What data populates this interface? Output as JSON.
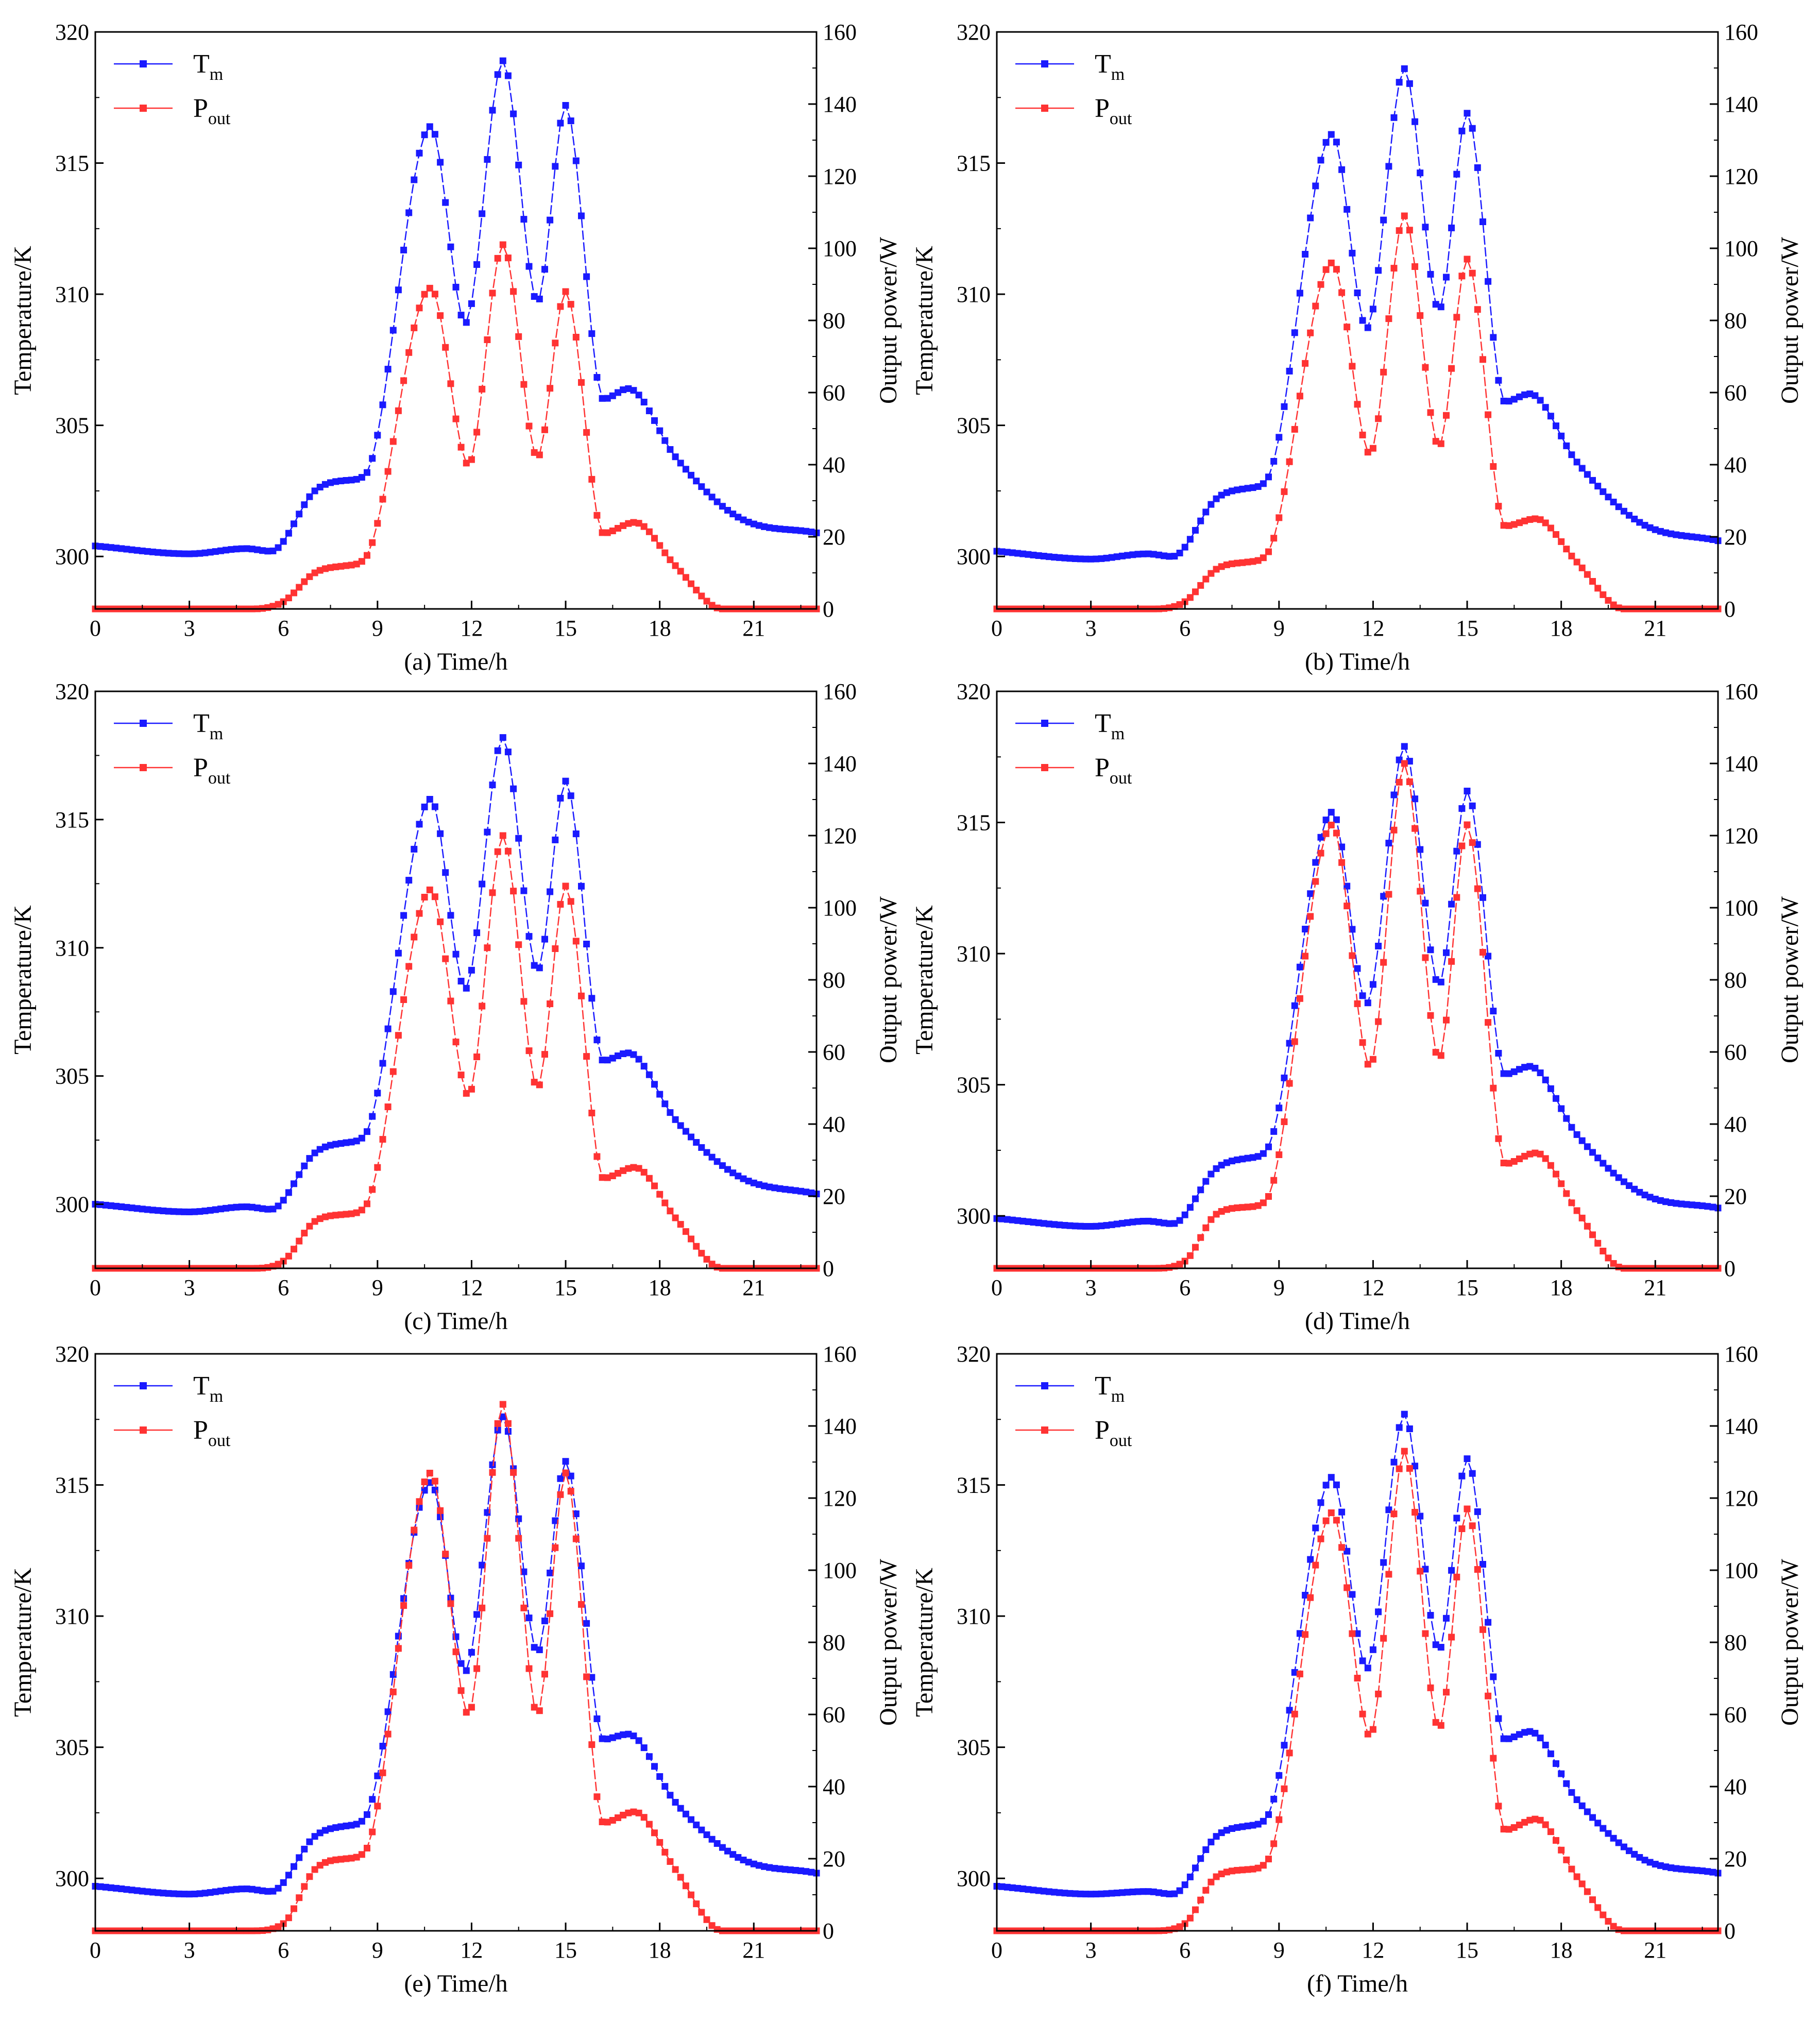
{
  "figure": {
    "colors": {
      "tm": "#1a1aff",
      "pout": "#ff3333",
      "axis": "#000000"
    },
    "series_names": {
      "tm": "T_m",
      "pout": "P_out"
    },
    "legend": {
      "tm_main": "T",
      "tm_sub": "m",
      "pout_main": "P",
      "pout_sub": "out"
    }
  },
  "chart_data": [
    {
      "type": "line",
      "panel": "a",
      "caption": "(a) Time/h",
      "xlabel": "Time/h",
      "ylabel_left": "Temperature/K",
      "ylabel_right": "Output power/W",
      "xlim": [
        0,
        23
      ],
      "xticks": [
        "0",
        "3",
        "6",
        "9",
        "12",
        "15",
        "18",
        "21"
      ],
      "ylim_left": [
        298,
        320
      ],
      "yticks_left": [
        "300",
        "305",
        "310",
        "315",
        "320"
      ],
      "ylim_right": [
        0,
        160
      ],
      "yticks_right": [
        "0",
        "20",
        "40",
        "60",
        "80",
        "100",
        "120",
        "140",
        "160"
      ],
      "legend_position": "top-left",
      "series": [
        {
          "name": "T_m",
          "axis": "left",
          "x": [
            0,
            3,
            4.8,
            5.6,
            7,
            8,
            8.6,
            10.7,
            11.8,
            13,
            14.1,
            15,
            16.2,
            17,
            18.5,
            20.5,
            23
          ],
          "y": [
            300.4,
            300.1,
            300.3,
            300.2,
            302.5,
            302.9,
            303.1,
            316.4,
            308.9,
            318.9,
            309.7,
            317.2,
            306.0,
            306.4,
            303.8,
            301.5,
            300.9
          ]
        },
        {
          "name": "P_out",
          "axis": "right",
          "x": [
            0,
            5,
            6,
            7,
            8,
            8.6,
            10.7,
            11.9,
            13,
            14.1,
            15,
            16.2,
            17.2,
            18.5,
            20,
            23
          ],
          "y": [
            0,
            0,
            2,
            10,
            12,
            14,
            89,
            40,
            101,
            42,
            88,
            21,
            24,
            12,
            0,
            0
          ]
        }
      ]
    },
    {
      "type": "line",
      "panel": "b",
      "caption": "(b) Time/h",
      "xlabel": "Time/h",
      "ylabel_left": "Temperature/K",
      "ylabel_right": "Output power/W",
      "xlim": [
        0,
        23
      ],
      "xticks": [
        "0",
        "3",
        "6",
        "9",
        "12",
        "15",
        "18",
        "21"
      ],
      "ylim_left": [
        298,
        320
      ],
      "yticks_left": [
        "300",
        "305",
        "310",
        "315",
        "320"
      ],
      "ylim_right": [
        0,
        160
      ],
      "yticks_right": [
        "0",
        "20",
        "40",
        "60",
        "80",
        "100",
        "120",
        "140",
        "160"
      ],
      "legend_position": "top-left",
      "series": [
        {
          "name": "T_m",
          "axis": "left",
          "x": [
            0,
            3,
            4.8,
            5.6,
            7,
            8,
            8.6,
            10.7,
            11.8,
            13,
            14.1,
            15,
            16.2,
            17,
            18.5,
            20.5,
            23
          ],
          "y": [
            300.2,
            299.9,
            300.1,
            300.0,
            302.2,
            302.6,
            302.9,
            316.1,
            308.7,
            318.6,
            309.4,
            316.9,
            305.9,
            306.2,
            303.6,
            301.3,
            300.6
          ]
        },
        {
          "name": "P_out",
          "axis": "right",
          "x": [
            0,
            5,
            6,
            7,
            8,
            8.6,
            10.7,
            11.9,
            13,
            14.1,
            15,
            16.2,
            17.2,
            18.5,
            20,
            23
          ],
          "y": [
            0,
            0,
            2,
            11,
            13,
            15,
            96,
            43,
            109,
            45,
            97,
            23,
            25,
            13,
            0,
            0
          ]
        }
      ]
    },
    {
      "type": "line",
      "panel": "c",
      "caption": "(c) Time/h",
      "xlabel": "Time/h",
      "ylabel_left": "Temperature/K",
      "ylabel_right": "Output power/W",
      "xlim": [
        0,
        23
      ],
      "xticks": [
        "0",
        "3",
        "6",
        "9",
        "12",
        "15",
        "18",
        "21"
      ],
      "ylim_left": [
        297.5,
        320
      ],
      "yticks_left": [
        "300",
        "305",
        "310",
        "315",
        "320"
      ],
      "ylim_right": [
        0,
        160
      ],
      "yticks_right": [
        "0",
        "20",
        "40",
        "60",
        "80",
        "100",
        "120",
        "140",
        "160"
      ],
      "legend_position": "top-left",
      "series": [
        {
          "name": "T_m",
          "axis": "left",
          "x": [
            0,
            3,
            4.8,
            5.6,
            7,
            8,
            8.6,
            10.7,
            11.8,
            13,
            14.1,
            15,
            16.2,
            17,
            18.5,
            20.5,
            23
          ],
          "y": [
            300.0,
            299.7,
            299.9,
            299.8,
            302.0,
            302.4,
            302.7,
            315.8,
            308.4,
            318.2,
            309.1,
            316.5,
            305.6,
            305.9,
            303.3,
            301.1,
            300.4
          ]
        },
        {
          "name": "P_out",
          "axis": "right",
          "x": [
            0,
            5,
            6,
            7,
            8,
            8.6,
            10.7,
            11.9,
            13,
            14.1,
            15,
            16.2,
            17.2,
            18.5,
            20,
            23
          ],
          "y": [
            0,
            0,
            2,
            13,
            15,
            17,
            105,
            48,
            120,
            50,
            106,
            25,
            28,
            14,
            0,
            0
          ]
        }
      ]
    },
    {
      "type": "line",
      "panel": "d",
      "caption": "(d) Time/h",
      "xlabel": "Time/h",
      "ylabel_left": "Temperature/K",
      "ylabel_right": "Output power/W",
      "xlim": [
        0,
        23
      ],
      "xticks": [
        "0",
        "3",
        "6",
        "9",
        "12",
        "15",
        "18",
        "21"
      ],
      "ylim_left": [
        298,
        320
      ],
      "yticks_left": [
        "300",
        "305",
        "310",
        "315",
        "320"
      ],
      "ylim_right": [
        0,
        160
      ],
      "yticks_right": [
        "0",
        "20",
        "40",
        "60",
        "80",
        "100",
        "120",
        "140",
        "160"
      ],
      "legend_position": "top-left",
      "series": [
        {
          "name": "T_m",
          "axis": "left",
          "x": [
            0,
            3,
            4.8,
            5.6,
            7,
            8,
            8.6,
            10.7,
            11.8,
            13,
            14.1,
            15,
            16.2,
            17,
            18.5,
            20.5,
            23
          ],
          "y": [
            299.9,
            299.6,
            299.8,
            299.7,
            301.8,
            302.2,
            302.5,
            315.4,
            308.1,
            317.9,
            308.8,
            316.2,
            305.4,
            305.7,
            303.1,
            300.9,
            300.3
          ]
        },
        {
          "name": "P_out",
          "axis": "right",
          "x": [
            0,
            5,
            6,
            7,
            8,
            8.6,
            10.7,
            11.9,
            13,
            14.1,
            15,
            16.2,
            17.2,
            18.5,
            20,
            23
          ],
          "y": [
            0,
            0,
            2,
            15,
            17,
            19,
            123,
            56,
            140,
            58,
            123,
            29,
            32,
            16,
            0,
            0
          ]
        }
      ]
    },
    {
      "type": "line",
      "panel": "e",
      "caption": "(e) Time/h",
      "xlabel": "Time/h",
      "ylabel_left": "Temperature/K",
      "ylabel_right": "Output power/W",
      "xlim": [
        0,
        23
      ],
      "xticks": [
        "0",
        "3",
        "6",
        "9",
        "12",
        "15",
        "18",
        "21"
      ],
      "ylim_left": [
        298,
        320
      ],
      "yticks_left": [
        "300",
        "305",
        "310",
        "315",
        "320"
      ],
      "ylim_right": [
        0,
        160
      ],
      "yticks_right": [
        "0",
        "20",
        "40",
        "60",
        "80",
        "100",
        "120",
        "140",
        "160"
      ],
      "legend_position": "top-left",
      "series": [
        {
          "name": "T_m",
          "axis": "left",
          "x": [
            0,
            3,
            4.8,
            5.6,
            7,
            8,
            8.6,
            10.7,
            11.8,
            13,
            14.1,
            15,
            16.2,
            17,
            18.5,
            20.5,
            23
          ],
          "y": [
            299.7,
            299.4,
            299.6,
            299.5,
            301.6,
            302.0,
            302.3,
            315.1,
            307.9,
            317.6,
            308.6,
            315.9,
            305.3,
            305.5,
            302.9,
            300.8,
            300.2
          ]
        },
        {
          "name": "P_out",
          "axis": "right",
          "x": [
            0,
            5,
            6,
            7,
            8,
            8.6,
            10.7,
            11.9,
            13,
            14.1,
            15,
            16.2,
            17.2,
            18.5,
            20,
            23
          ],
          "y": [
            0,
            0,
            2,
            17,
            20,
            22,
            127,
            60,
            146,
            60,
            127,
            30,
            33,
            17,
            0,
            0
          ]
        }
      ]
    },
    {
      "type": "line",
      "panel": "f",
      "caption": "(f) Time/h",
      "xlabel": "Time/h",
      "ylabel_left": "Temperature/K",
      "ylabel_right": "Output power/W",
      "xlim": [
        0,
        23
      ],
      "xticks": [
        "0",
        "3",
        "6",
        "9",
        "12",
        "15",
        "18",
        "21"
      ],
      "ylim_left": [
        298,
        320
      ],
      "yticks_left": [
        "300",
        "305",
        "310",
        "315",
        "320"
      ],
      "ylim_right": [
        0,
        160
      ],
      "yticks_right": [
        "0",
        "20",
        "40",
        "60",
        "80",
        "100",
        "120",
        "140",
        "160"
      ],
      "legend_position": "top-left",
      "series": [
        {
          "name": "T_m",
          "axis": "left",
          "x": [
            0,
            3,
            4.8,
            5.6,
            7,
            8,
            8.6,
            10.7,
            11.8,
            13,
            14.1,
            15,
            16.2,
            17,
            18.5,
            20.5,
            23
          ],
          "y": [
            299.7,
            299.4,
            299.5,
            299.4,
            301.6,
            302.0,
            302.3,
            315.3,
            308.0,
            317.7,
            308.7,
            316.0,
            305.3,
            305.6,
            303.0,
            300.8,
            300.2
          ]
        },
        {
          "name": "P_out",
          "axis": "right",
          "x": [
            0,
            5,
            6,
            7,
            8,
            8.6,
            10.7,
            11.9,
            13,
            14.1,
            15,
            16.2,
            17.2,
            18.5,
            20,
            23
          ],
          "y": [
            0,
            0,
            2,
            15,
            17,
            19,
            116,
            54,
            133,
            56,
            117,
            28,
            31,
            15,
            0,
            0
          ]
        }
      ]
    }
  ]
}
